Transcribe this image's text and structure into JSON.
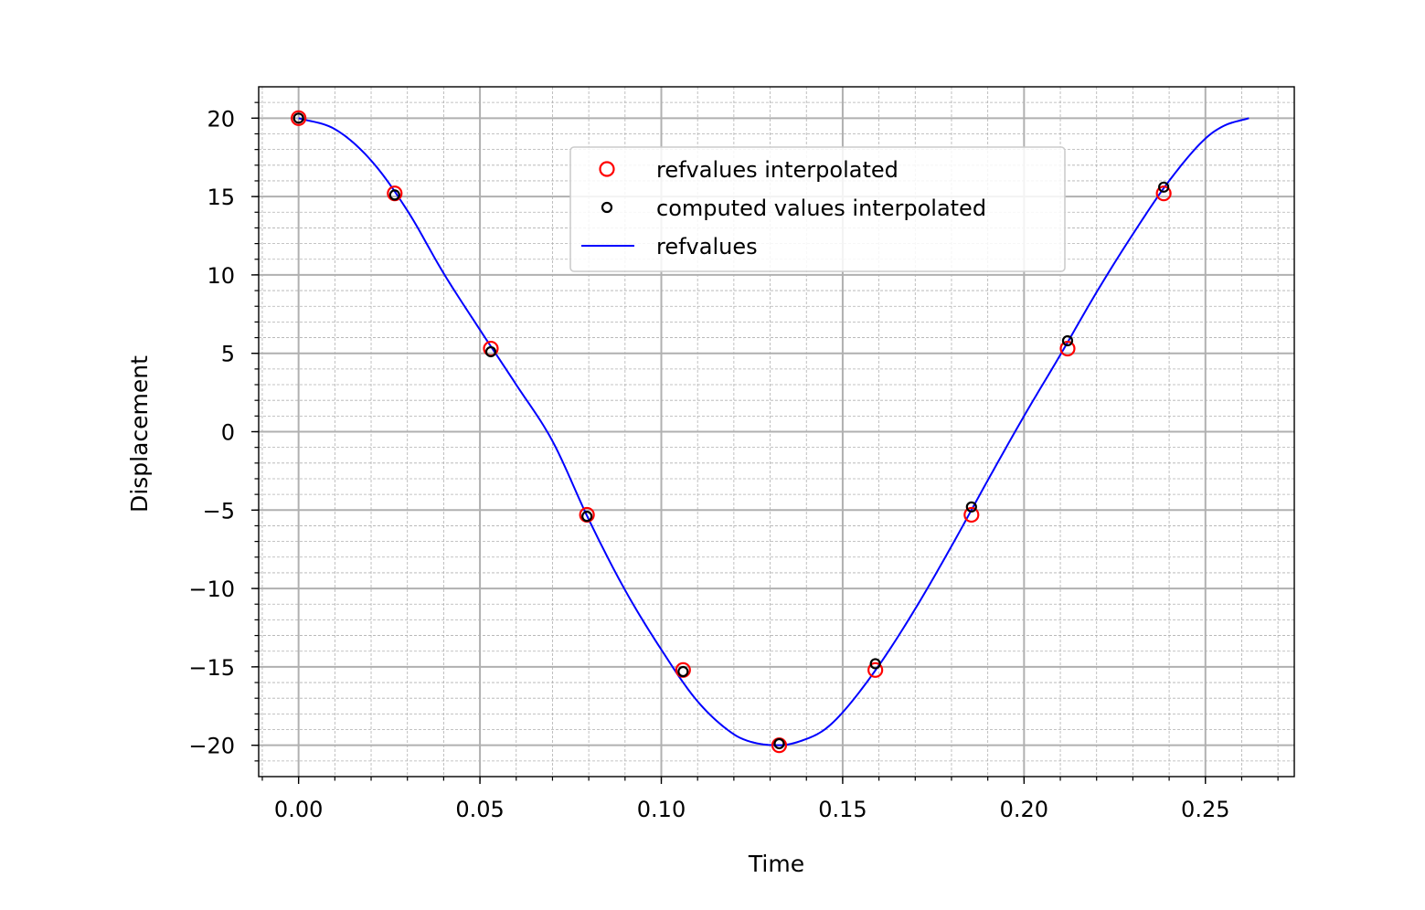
{
  "chart_data": {
    "type": "scatter",
    "xlabel": "Time",
    "ylabel": "Displacement",
    "xlim": [
      -0.011,
      0.2745
    ],
    "ylim": [
      -22.0,
      22.0
    ],
    "xticks": [
      0.0,
      0.05,
      0.1,
      0.15,
      0.2,
      0.25
    ],
    "xtick_labels": [
      "0.00",
      "0.05",
      "0.10",
      "0.15",
      "0.20",
      "0.25"
    ],
    "yticks": [
      20,
      15,
      10,
      5,
      0,
      -5,
      -10,
      -15,
      -20
    ],
    "ytick_labels": [
      "20",
      "15",
      "10",
      "5",
      "0",
      "−5",
      "−10",
      "−15",
      "−20"
    ],
    "grid": {
      "major": true,
      "minor": true
    },
    "legend_position": "upper center",
    "series": [
      {
        "name": "refvalues interpolated",
        "kind": "markers",
        "marker": "open-circle",
        "color": "#ff0000",
        "x": [
          0.0,
          0.0265,
          0.053,
          0.0795,
          0.106,
          0.1325,
          0.159,
          0.1855,
          0.212,
          0.2385
        ],
        "y": [
          20.0,
          15.2,
          5.3,
          -5.3,
          -15.2,
          -20.0,
          -15.2,
          -5.3,
          5.3,
          15.2
        ]
      },
      {
        "name": "computed values interpolated",
        "kind": "markers",
        "marker": "open-circle-small",
        "color": "#000000",
        "x": [
          0.0,
          0.0265,
          0.053,
          0.0795,
          0.106,
          0.1325,
          0.159,
          0.1855,
          0.212,
          0.2385
        ],
        "y": [
          20.0,
          15.1,
          5.1,
          -5.4,
          -15.3,
          -19.9,
          -14.8,
          -4.8,
          5.8,
          15.6
        ]
      },
      {
        "name": "refvalues",
        "kind": "line",
        "color": "#0000ff",
        "x": [
          0.0,
          0.01,
          0.02,
          0.03,
          0.04,
          0.05,
          0.06,
          0.07,
          0.08,
          0.09,
          0.1,
          0.11,
          0.12,
          0.125,
          0.1325,
          0.14,
          0.145,
          0.15,
          0.16,
          0.17,
          0.18,
          0.19,
          0.2,
          0.21,
          0.22,
          0.23,
          0.24,
          0.25,
          0.255,
          0.262
        ],
        "y": [
          20.0,
          19.3,
          17.3,
          14.1,
          10.1,
          6.5,
          3.0,
          -0.6,
          -5.6,
          -10.1,
          -13.9,
          -17.2,
          -19.3,
          -19.8,
          -20.0,
          -19.6,
          -19.0,
          -17.9,
          -14.9,
          -11.3,
          -7.3,
          -3.1,
          1.0,
          4.9,
          8.9,
          12.6,
          16.0,
          18.7,
          19.5,
          20.0
        ]
      }
    ]
  }
}
